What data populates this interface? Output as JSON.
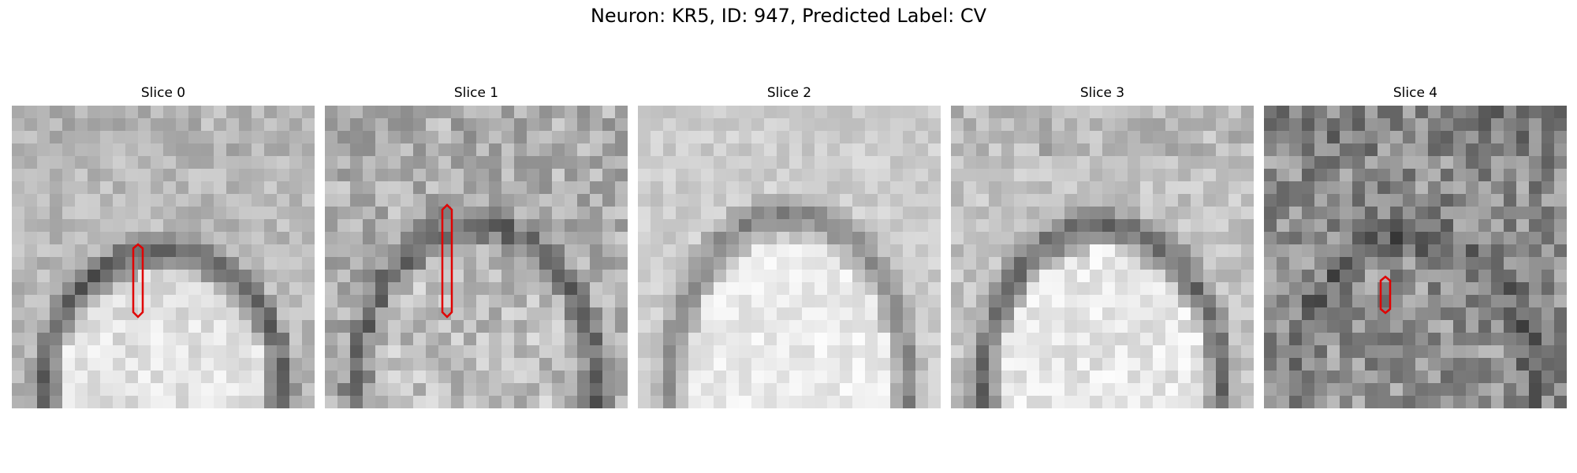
{
  "figure": {
    "title": "Neuron: KR5, ID: 947, Predicted Label: CV"
  },
  "panels": [
    {
      "title": "Slice 0",
      "pattern": "arch-bright-interior",
      "marker_color": "#e00000"
    },
    {
      "title": "Slice 1",
      "pattern": "noisy-arch",
      "marker_color": "#e00000"
    },
    {
      "title": "Slice 2",
      "pattern": "bright-arch",
      "marker_color": ""
    },
    {
      "title": "Slice 3",
      "pattern": "arch-dark-top",
      "marker_color": ""
    },
    {
      "title": "Slice 4",
      "pattern": "dark-noisy",
      "marker_color": "#e00000"
    }
  ]
}
